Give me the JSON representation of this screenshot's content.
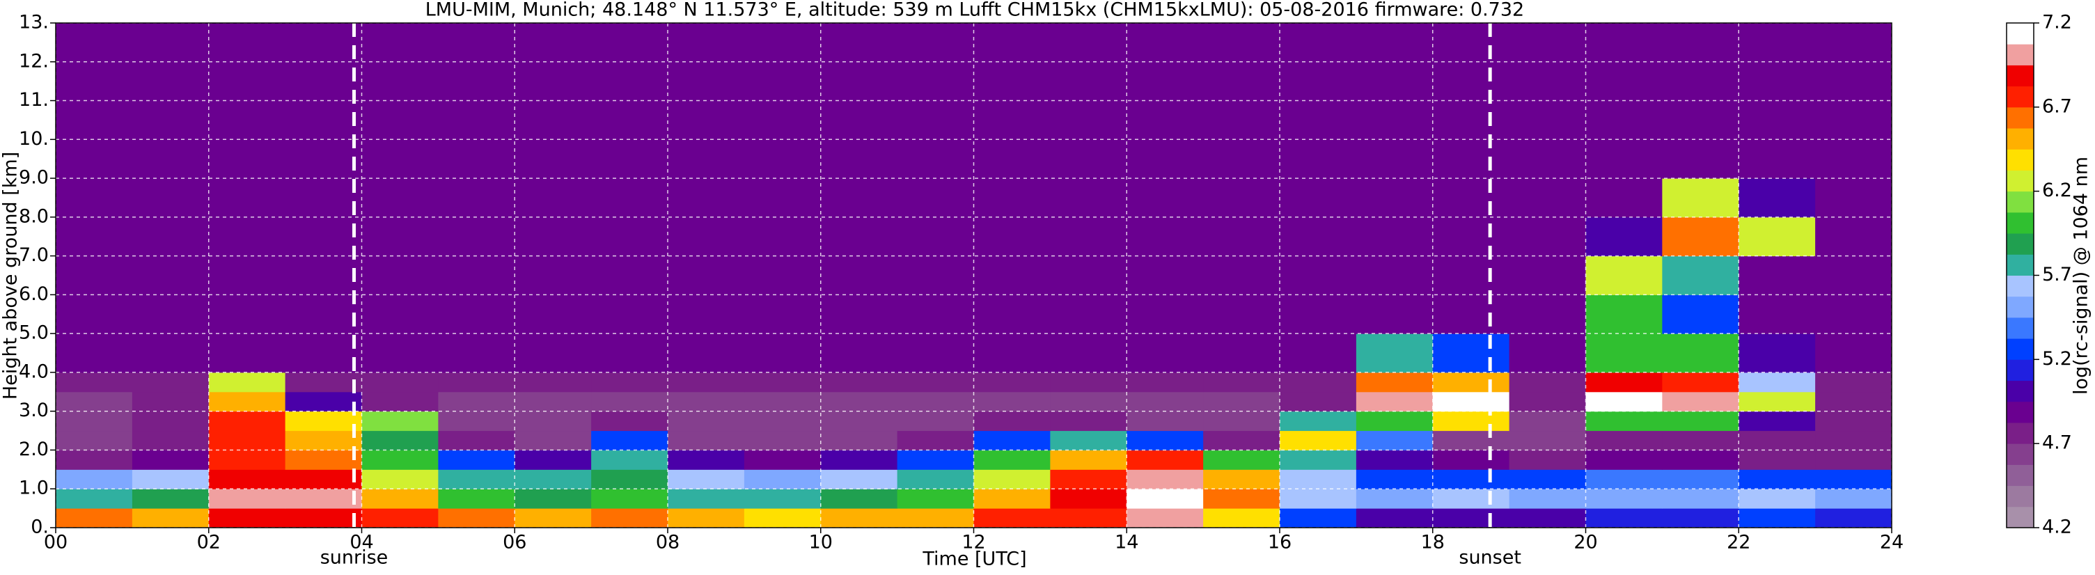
{
  "chart_data": {
    "type": "heatmap",
    "title": "LMU-MIM, Munich; 48.148° N 11.573° E, altitude: 539 m    Lufft CHM15kx (CHM15kxLMU): 05-08-2016    firmware: 0.732",
    "x_label": "Time [UTC]",
    "y_label": "Height above ground [km]",
    "colorbar_label": "log(rc-signal) @ 1064 nm",
    "xlim": [
      0,
      24
    ],
    "ylim": [
      0,
      13
    ],
    "clim": [
      4.2,
      7.2
    ],
    "xticks": [
      {
        "value": 0,
        "label": "00"
      },
      {
        "value": 2,
        "label": "02"
      },
      {
        "value": 4,
        "label": "04"
      },
      {
        "value": 6,
        "label": "06"
      },
      {
        "value": 8,
        "label": "08"
      },
      {
        "value": 10,
        "label": "10"
      },
      {
        "value": 12,
        "label": "12"
      },
      {
        "value": 14,
        "label": "14"
      },
      {
        "value": 16,
        "label": "16"
      },
      {
        "value": 18,
        "label": "18"
      },
      {
        "value": 20,
        "label": "20"
      },
      {
        "value": 22,
        "label": "22"
      },
      {
        "value": 24,
        "label": "24"
      }
    ],
    "yticks": [
      {
        "value": 0,
        "label": "0."
      },
      {
        "value": 1,
        "label": "1.0"
      },
      {
        "value": 2,
        "label": "2.0"
      },
      {
        "value": 3,
        "label": "3.0"
      },
      {
        "value": 4,
        "label": "4.0"
      },
      {
        "value": 5,
        "label": "5.0"
      },
      {
        "value": 6,
        "label": "6.0"
      },
      {
        "value": 7,
        "label": "7.0"
      },
      {
        "value": 8,
        "label": "8.0"
      },
      {
        "value": 9,
        "label": "9.0"
      },
      {
        "value": 10,
        "label": "10."
      },
      {
        "value": 11,
        "label": "11."
      },
      {
        "value": 12,
        "label": "12."
      },
      {
        "value": 13,
        "label": "13."
      }
    ],
    "cticks": [
      4.2,
      4.7,
      5.2,
      5.7,
      6.2,
      6.7,
      7.2
    ],
    "grid": true,
    "colormap": [
      "#a890aa",
      "#9c7aa0",
      "#905f98",
      "#853f8e",
      "#7a1f88",
      "#6a0090",
      "#4a00a8",
      "#2020e0",
      "#0040ff",
      "#3a78ff",
      "#7fa8ff",
      "#a8c4ff",
      "#30b0a0",
      "#20a050",
      "#30c030",
      "#80e040",
      "#d0f030",
      "#ffe000",
      "#ffb000",
      "#ff7000",
      "#ff2000",
      "#f00000",
      "#f0a0a0",
      "#ffffff"
    ],
    "x_bins": [
      0,
      1,
      2,
      3,
      4,
      5,
      6,
      7,
      8,
      9,
      10,
      11,
      12,
      13,
      14,
      15,
      16,
      17,
      18,
      19,
      20,
      21,
      22,
      23,
      24
    ],
    "y_bins": [
      0,
      0.5,
      1,
      1.5,
      2,
      2.5,
      3,
      3.5,
      4,
      5,
      6,
      7,
      8,
      9,
      13
    ],
    "values": [
      [
        6.6,
        6.5,
        6.9,
        6.9,
        6.7,
        6.6,
        6.5,
        6.6,
        6.5,
        6.4,
        6.5,
        6.5,
        6.7,
        6.8,
        7.0,
        6.4,
        5.3,
        5.0,
        5.0,
        5.0,
        5.1,
        5.1,
        5.2,
        5.1
      ],
      [
        5.7,
        5.9,
        7.0,
        7.0,
        6.5,
        6.0,
        5.9,
        6.0,
        5.8,
        5.8,
        5.9,
        6.0,
        6.5,
        6.9,
        7.1,
        6.6,
        5.6,
        5.5,
        5.6,
        5.5,
        5.5,
        5.5,
        5.6,
        5.5
      ],
      [
        5.5,
        5.6,
        6.9,
        6.9,
        6.3,
        5.8,
        5.7,
        5.9,
        5.6,
        5.5,
        5.6,
        5.7,
        6.3,
        6.8,
        7.0,
        6.5,
        5.6,
        5.3,
        5.2,
        5.3,
        5.4,
        5.4,
        5.3,
        5.2
      ],
      [
        4.8,
        4.9,
        6.7,
        6.6,
        6.0,
        5.2,
        5.0,
        5.8,
        5.0,
        4.9,
        5.0,
        5.2,
        6.0,
        6.5,
        6.7,
        6.0,
        5.8,
        5.0,
        4.9,
        4.8,
        4.9,
        4.9,
        4.8,
        4.8
      ],
      [
        4.6,
        4.7,
        6.7,
        6.5,
        5.9,
        4.7,
        4.6,
        5.2,
        4.6,
        4.6,
        4.6,
        4.7,
        5.3,
        5.7,
        5.2,
        4.7,
        6.4,
        5.4,
        4.6,
        4.6,
        4.7,
        4.7,
        4.7,
        4.7
      ],
      [
        4.6,
        4.7,
        6.8,
        6.4,
        6.1,
        4.6,
        4.6,
        4.7,
        4.6,
        4.6,
        4.6,
        4.6,
        4.7,
        4.7,
        4.6,
        4.6,
        5.8,
        6.0,
        6.4,
        4.6,
        6.0,
        6.0,
        5.0,
        4.8
      ],
      [
        4.6,
        4.7,
        6.5,
        5.0,
        4.7,
        4.6,
        4.6,
        4.6,
        4.6,
        4.6,
        4.6,
        4.6,
        4.6,
        4.6,
        4.6,
        4.6,
        4.7,
        7.0,
        7.1,
        4.7,
        7.1,
        7.0,
        6.3,
        4.7
      ],
      [
        4.7,
        4.7,
        6.3,
        4.8,
        4.7,
        4.7,
        4.7,
        4.7,
        4.7,
        4.7,
        4.7,
        4.7,
        4.7,
        4.7,
        4.7,
        4.7,
        4.7,
        6.6,
        6.5,
        4.7,
        6.9,
        6.8,
        5.6,
        4.7
      ],
      [
        4.9,
        4.9,
        4.9,
        4.9,
        4.9,
        4.9,
        4.9,
        4.9,
        4.9,
        4.9,
        4.9,
        4.9,
        4.9,
        4.9,
        4.9,
        4.9,
        4.9,
        5.8,
        5.2,
        4.9,
        6.0,
        6.0,
        5.0,
        4.9
      ],
      [
        4.9,
        4.9,
        4.9,
        4.9,
        4.9,
        4.9,
        4.9,
        4.9,
        4.9,
        4.9,
        4.9,
        4.9,
        4.9,
        4.9,
        4.9,
        4.9,
        4.9,
        4.9,
        4.9,
        4.9,
        6.0,
        5.3,
        4.9,
        4.9
      ],
      [
        4.9,
        4.9,
        4.9,
        4.9,
        4.9,
        4.9,
        4.9,
        4.9,
        4.9,
        4.9,
        4.9,
        4.9,
        4.9,
        4.9,
        4.9,
        4.9,
        4.9,
        4.9,
        4.9,
        4.9,
        6.3,
        5.8,
        4.9,
        4.9
      ],
      [
        4.9,
        4.9,
        4.9,
        4.9,
        4.9,
        4.9,
        4.9,
        4.9,
        4.9,
        4.9,
        4.9,
        4.9,
        4.9,
        4.9,
        4.9,
        4.9,
        4.9,
        4.9,
        4.9,
        4.9,
        5.0,
        6.6,
        6.2,
        4.9
      ],
      [
        4.9,
        4.9,
        4.9,
        4.9,
        4.9,
        4.9,
        4.9,
        4.9,
        4.9,
        4.9,
        4.9,
        4.9,
        4.9,
        4.9,
        4.9,
        4.9,
        4.9,
        4.9,
        4.9,
        4.9,
        4.9,
        6.3,
        5.0,
        4.9
      ],
      [
        4.9,
        4.9,
        4.9,
        4.9,
        4.9,
        4.9,
        4.9,
        4.9,
        4.9,
        4.9,
        4.9,
        4.9,
        4.9,
        4.9,
        4.9,
        4.9,
        4.9,
        4.9,
        4.9,
        4.9,
        4.9,
        4.9,
        4.9,
        4.9
      ]
    ],
    "annotations": [
      {
        "text": "sunrise",
        "x": 3.9
      },
      {
        "text": "sunset",
        "x": 18.75
      }
    ]
  }
}
